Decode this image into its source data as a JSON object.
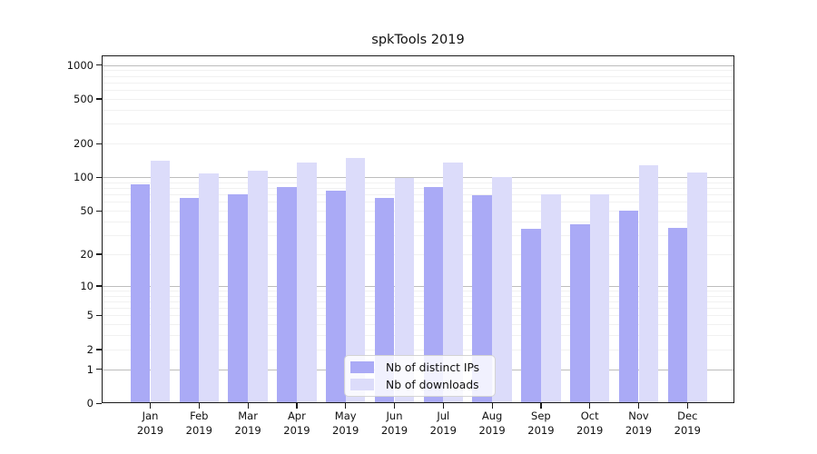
{
  "title": "spkTools 2019",
  "legend": {
    "items": [
      {
        "label": "Nb of distinct IPs",
        "color": "#aaaaf6"
      },
      {
        "label": "Nb of downloads",
        "color": "#dcdcfa"
      }
    ]
  },
  "y_axis": {
    "tick_values": [
      1000,
      500,
      200,
      100,
      50,
      20,
      10,
      5,
      2,
      1,
      0
    ],
    "tick_labels": [
      "1000",
      "500",
      "200",
      "100",
      "50",
      "20",
      "10",
      "5",
      "2",
      "1",
      "0"
    ]
  },
  "x_axis": {
    "categories": [
      {
        "month": "Jan",
        "year": "2019"
      },
      {
        "month": "Feb",
        "year": "2019"
      },
      {
        "month": "Mar",
        "year": "2019"
      },
      {
        "month": "Apr",
        "year": "2019"
      },
      {
        "month": "May",
        "year": "2019"
      },
      {
        "month": "Jun",
        "year": "2019"
      },
      {
        "month": "Jul",
        "year": "2019"
      },
      {
        "month": "Aug",
        "year": "2019"
      },
      {
        "month": "Sep",
        "year": "2019"
      },
      {
        "month": "Oct",
        "year": "2019"
      },
      {
        "month": "Nov",
        "year": "2019"
      },
      {
        "month": "Dec",
        "year": "2019"
      }
    ]
  },
  "chart_data": {
    "type": "bar",
    "title": "spkTools 2019",
    "xlabel": "",
    "ylabel": "",
    "scale": "log10(value+1), zero shown at axis bottom",
    "ylim": [
      0,
      1250
    ],
    "y_ticks": [
      0,
      1,
      2,
      5,
      10,
      20,
      50,
      100,
      200,
      500,
      1000
    ],
    "grid": "faint log minor gridlines, darker lines at powers of 10",
    "legend_position": "inside bottom-center",
    "categories": [
      "Jan 2019",
      "Feb 2019",
      "Mar 2019",
      "Apr 2019",
      "May 2019",
      "Jun 2019",
      "Jul 2019",
      "Aug 2019",
      "Sep 2019",
      "Oct 2019",
      "Nov 2019",
      "Dec 2019"
    ],
    "series": [
      {
        "name": "Nb of distinct IPs",
        "color": "#aaaaf6",
        "values": [
          86,
          65,
          70,
          81,
          76,
          65,
          82,
          69,
          34,
          38,
          50,
          35
        ]
      },
      {
        "name": "Nb of downloads",
        "color": "#dcdcfa",
        "values": [
          140,
          109,
          114,
          136,
          150,
          98,
          136,
          100,
          71,
          71,
          128,
          111
        ]
      }
    ]
  },
  "grid_colors": {
    "major": "#bdbdbd",
    "minor": "#f1f1f1"
  }
}
